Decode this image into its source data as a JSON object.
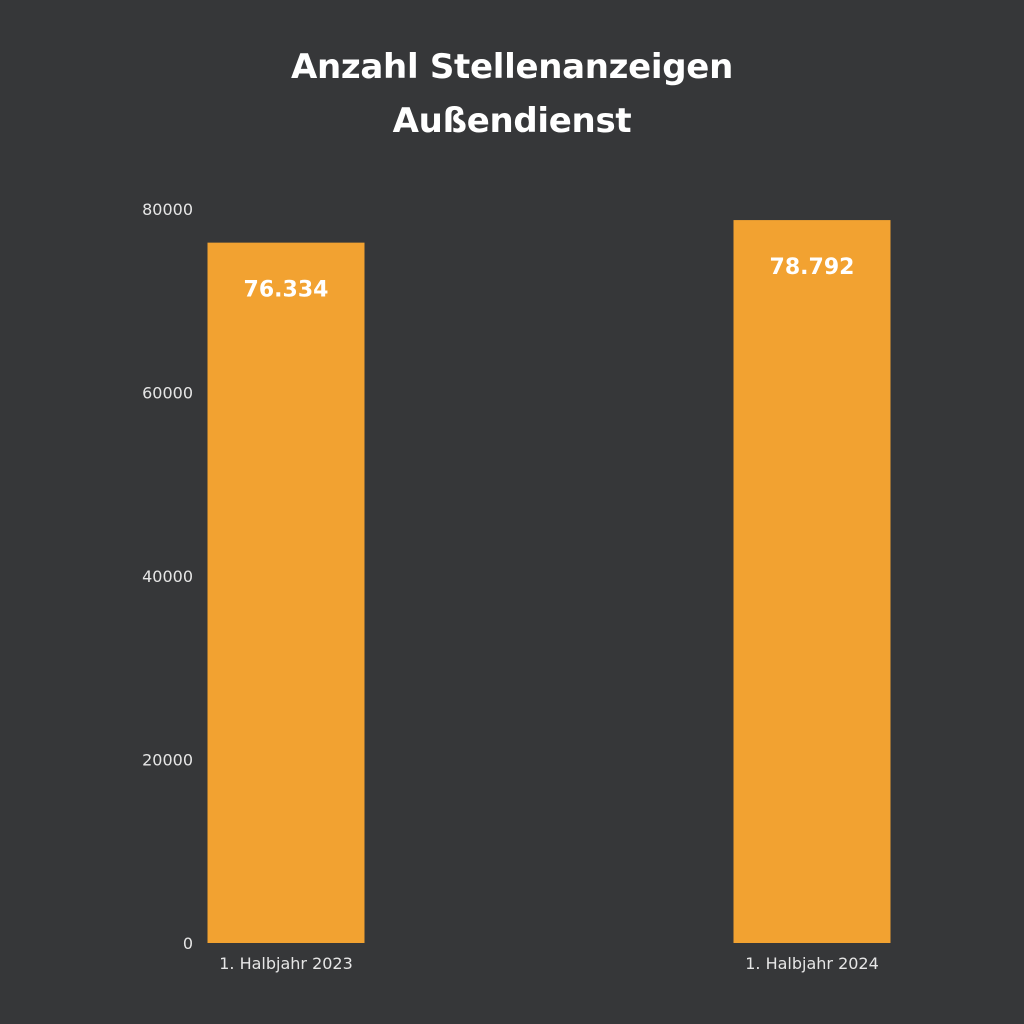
{
  "chart_data": {
    "type": "bar",
    "title": [
      "Anzahl Stellenanzeigen",
      "Außendienst"
    ],
    "categories": [
      "1. Halbjahr 2023",
      "1. Halbjahr 2024"
    ],
    "values": [
      76334,
      78792
    ],
    "data_labels": [
      "76.334",
      "78.792"
    ],
    "yticks": [
      0,
      20000,
      40000,
      60000,
      80000
    ],
    "ytick_labels": [
      "0",
      "20000",
      "40000",
      "60000",
      "80000"
    ],
    "ylim": [
      0,
      80000
    ],
    "xlabel": "",
    "ylabel": "",
    "grid": false,
    "bar_color": "#f2a231",
    "background_color": "#363739"
  }
}
